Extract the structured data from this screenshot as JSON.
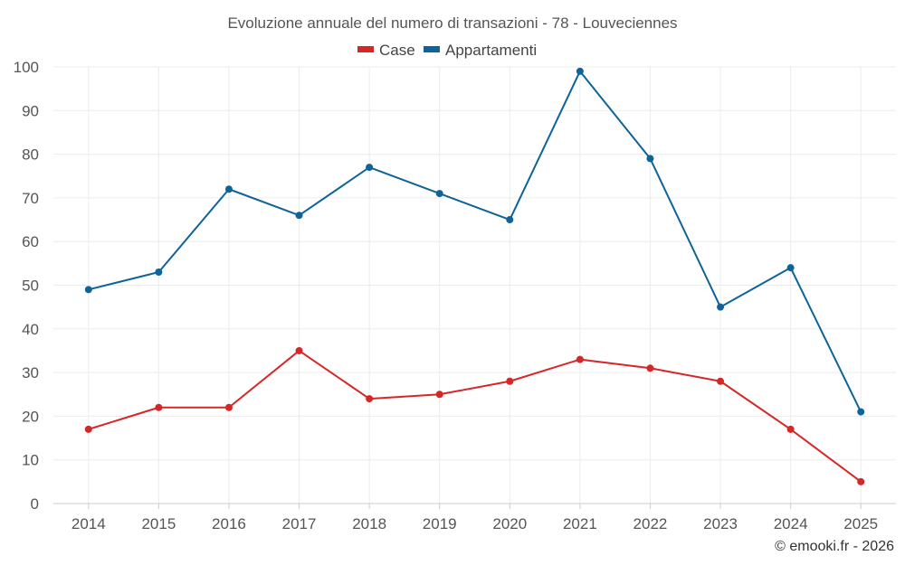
{
  "chart_data": {
    "type": "line",
    "title": "Evoluzione annuale del numero di transazioni - 78 - Louveciennes",
    "categories": [
      "2014",
      "2015",
      "2016",
      "2017",
      "2018",
      "2019",
      "2020",
      "2021",
      "2022",
      "2023",
      "2024",
      "2025"
    ],
    "series": [
      {
        "name": "Case",
        "color": "#d62728",
        "values": [
          17,
          22,
          22,
          35,
          24,
          25,
          28,
          33,
          31,
          28,
          17,
          5
        ]
      },
      {
        "name": "Appartamenti",
        "color": "#0e6399",
        "values": [
          49,
          53,
          72,
          66,
          77,
          71,
          65,
          99,
          79,
          45,
          54,
          21
        ]
      }
    ],
    "ylim": [
      0,
      100
    ],
    "yticks": [
      0,
      10,
      20,
      30,
      40,
      50,
      60,
      70,
      80,
      90,
      100
    ],
    "legend_position": "top-center",
    "grid": true,
    "xlabel": "",
    "ylabel": ""
  },
  "credit": "© emooki.fr - 2026"
}
